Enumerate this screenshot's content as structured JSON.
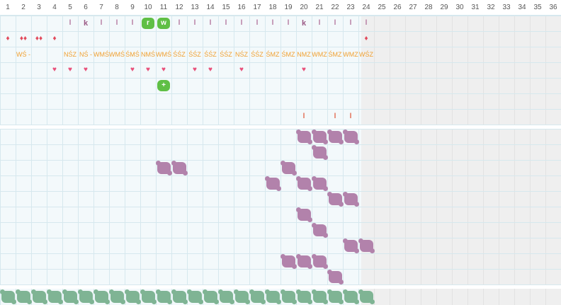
{
  "columns": [
    "1",
    "2",
    "3",
    "4",
    "5",
    "6",
    "7",
    "8",
    "9",
    "10",
    "11",
    "12",
    "13",
    "14",
    "15",
    "16",
    "17",
    "18",
    "19",
    "20",
    "21",
    "22",
    "23",
    "24",
    "25",
    "26",
    "27",
    "28",
    "29",
    "30",
    "31",
    "32",
    "33",
    "34",
    "35",
    "36"
  ],
  "active_columns": 23,
  "colors": {
    "grid_bg": "#f3f9fb",
    "gridline": "#d6e8ee",
    "inactive_bg": "#efefef",
    "blob_purple": "#b282ab",
    "blob_green": "#7fb494",
    "badge_green": "#5fbf45",
    "orange_text": "#f0a030",
    "heart": "#e8507a",
    "drop": "#e2495b"
  },
  "row1_marks": [
    {
      "col": 5,
      "text": "l"
    },
    {
      "col": 6,
      "text": "k"
    },
    {
      "col": 7,
      "text": "l"
    },
    {
      "col": 8,
      "text": "l"
    },
    {
      "col": 9,
      "text": "l"
    },
    {
      "col": 12,
      "text": "l"
    },
    {
      "col": 13,
      "text": "l"
    },
    {
      "col": 14,
      "text": "l"
    },
    {
      "col": 15,
      "text": "l"
    },
    {
      "col": 16,
      "text": "l"
    },
    {
      "col": 17,
      "text": "l"
    },
    {
      "col": 18,
      "text": "l"
    },
    {
      "col": 19,
      "text": "l"
    },
    {
      "col": 20,
      "text": "k"
    },
    {
      "col": 21,
      "text": "l"
    },
    {
      "col": 22,
      "text": "l"
    },
    {
      "col": 23,
      "text": "l"
    },
    {
      "col": 24,
      "text": "l"
    }
  ],
  "row1_badges": [
    {
      "col": 10,
      "text": "r"
    },
    {
      "col": 11,
      "text": "w"
    }
  ],
  "row2_drops": [
    {
      "col": 1,
      "text": "♦"
    },
    {
      "col": 2,
      "text": "♦♦"
    },
    {
      "col": 3,
      "text": "♦♦"
    },
    {
      "col": 4,
      "text": "♦"
    },
    {
      "col": 24,
      "text": "♦"
    }
  ],
  "row3_labels": [
    {
      "col": 2,
      "text": "WŚ -"
    },
    {
      "col": 5,
      "text": "NŚZ"
    },
    {
      "col": 6,
      "text": "NŚ -"
    },
    {
      "col": 7,
      "text": "WMŚ"
    },
    {
      "col": 8,
      "text": "WMŚ"
    },
    {
      "col": 9,
      "text": "ŚMŚ"
    },
    {
      "col": 10,
      "text": "NMŚ"
    },
    {
      "col": 11,
      "text": "WMŚ"
    },
    {
      "col": 12,
      "text": "ŚŚZ"
    },
    {
      "col": 13,
      "text": "ŚŚZ"
    },
    {
      "col": 14,
      "text": "ŚŚZ"
    },
    {
      "col": 15,
      "text": "ŚŚZ"
    },
    {
      "col": 16,
      "text": "NŚZ"
    },
    {
      "col": 17,
      "text": "ŚŚZ"
    },
    {
      "col": 18,
      "text": "ŚMZ"
    },
    {
      "col": 19,
      "text": "ŚMZ"
    },
    {
      "col": 20,
      "text": "NMZ"
    },
    {
      "col": 21,
      "text": "WMZ"
    },
    {
      "col": 22,
      "text": "ŚMZ"
    },
    {
      "col": 23,
      "text": "WMZ"
    },
    {
      "col": 24,
      "text": "WŚZ"
    }
  ],
  "row4_hearts": [
    4,
    5,
    6,
    9,
    10,
    11,
    13,
    14,
    16,
    20
  ],
  "row4_heart_glyph": "♥",
  "row5_plus": [
    {
      "col": 11,
      "text": "+"
    }
  ],
  "row7_marks": [
    20,
    22,
    23
  ],
  "row7_glyph": "l",
  "purple_blobs": [
    [
      20,
      21,
      22,
      23
    ],
    [
      21
    ],
    [
      11,
      12,
      19
    ],
    [
      18,
      20,
      21
    ],
    [
      22,
      23
    ],
    [
      20
    ],
    [
      21
    ],
    [
      23,
      24
    ],
    [
      19,
      20,
      21
    ],
    [
      22
    ]
  ],
  "green_row_count": 24
}
